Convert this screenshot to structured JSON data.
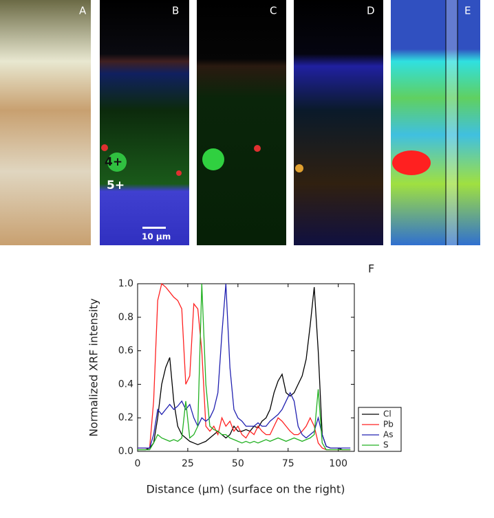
{
  "panels": {
    "labels": [
      "A",
      "B",
      "C",
      "D",
      "E"
    ],
    "annotations": [
      "4+",
      "5+"
    ],
    "scale_bar": "10 µm",
    "figure_label": "F"
  },
  "chart_data": {
    "type": "line",
    "xlabel": "Distance (µm) (surface on the right)",
    "ylabel": "Normalized XRF intensity",
    "x": [
      0,
      2,
      4,
      6,
      8,
      10,
      12,
      14,
      16,
      18,
      20,
      22,
      24,
      26,
      28,
      30,
      32,
      34,
      36,
      38,
      40,
      42,
      44,
      46,
      48,
      50,
      52,
      54,
      56,
      58,
      60,
      62,
      64,
      66,
      68,
      70,
      72,
      74,
      76,
      78,
      80,
      82,
      84,
      86,
      88,
      90,
      92,
      94,
      96,
      98,
      100,
      102,
      104,
      106
    ],
    "series": [
      {
        "name": "Cl",
        "color": "#000000",
        "values": [
          0.01,
          0.01,
          0.01,
          0.02,
          0.05,
          0.2,
          0.4,
          0.5,
          0.56,
          0.3,
          0.15,
          0.1,
          0.08,
          0.06,
          0.05,
          0.04,
          0.05,
          0.06,
          0.08,
          0.1,
          0.12,
          0.1,
          0.08,
          0.1,
          0.15,
          0.12,
          0.12,
          0.13,
          0.12,
          0.15,
          0.14,
          0.18,
          0.2,
          0.25,
          0.35,
          0.42,
          0.46,
          0.35,
          0.33,
          0.35,
          0.4,
          0.45,
          0.55,
          0.75,
          0.98,
          0.6,
          0.1,
          0.03,
          0.02,
          0.02,
          0.02,
          0.01,
          0.01,
          0.01
        ]
      },
      {
        "name": "Pb",
        "color": "#ff2020",
        "values": [
          0.02,
          0.02,
          0.02,
          0.02,
          0.3,
          0.9,
          1.0,
          0.98,
          0.95,
          0.92,
          0.9,
          0.85,
          0.4,
          0.45,
          0.88,
          0.85,
          0.6,
          0.15,
          0.12,
          0.15,
          0.1,
          0.2,
          0.15,
          0.18,
          0.12,
          0.15,
          0.1,
          0.08,
          0.12,
          0.1,
          0.15,
          0.12,
          0.1,
          0.1,
          0.15,
          0.2,
          0.18,
          0.15,
          0.12,
          0.1,
          0.1,
          0.12,
          0.15,
          0.2,
          0.15,
          0.05,
          0.02,
          0.01,
          0.01,
          0.01,
          0.01,
          0.01,
          0.01,
          0.01
        ]
      },
      {
        "name": "As",
        "color": "#2020b0",
        "values": [
          0.02,
          0.02,
          0.02,
          0.02,
          0.1,
          0.25,
          0.22,
          0.25,
          0.28,
          0.25,
          0.27,
          0.3,
          0.25,
          0.28,
          0.2,
          0.15,
          0.2,
          0.18,
          0.2,
          0.25,
          0.35,
          0.7,
          1.0,
          0.5,
          0.25,
          0.2,
          0.18,
          0.15,
          0.15,
          0.15,
          0.17,
          0.15,
          0.15,
          0.18,
          0.2,
          0.22,
          0.25,
          0.3,
          0.35,
          0.3,
          0.15,
          0.1,
          0.08,
          0.1,
          0.12,
          0.2,
          0.1,
          0.03,
          0.02,
          0.02,
          0.02,
          0.02,
          0.02,
          0.02
        ]
      },
      {
        "name": "S",
        "color": "#20b020",
        "values": [
          0.01,
          0.01,
          0.01,
          0.01,
          0.05,
          0.1,
          0.08,
          0.07,
          0.06,
          0.07,
          0.06,
          0.08,
          0.3,
          0.08,
          0.1,
          0.15,
          1.0,
          0.4,
          0.15,
          0.13,
          0.12,
          0.1,
          0.1,
          0.08,
          0.07,
          0.06,
          0.05,
          0.06,
          0.05,
          0.06,
          0.05,
          0.06,
          0.07,
          0.06,
          0.07,
          0.08,
          0.07,
          0.06,
          0.07,
          0.08,
          0.07,
          0.06,
          0.07,
          0.08,
          0.1,
          0.37,
          0.05,
          0.01,
          0.01,
          0.01,
          0.01,
          0.01,
          0.01,
          0.01
        ]
      }
    ],
    "xlim": [
      0,
      108
    ],
    "xticks": [
      0,
      25,
      50,
      75,
      100
    ],
    "ylim": [
      0,
      1.0
    ],
    "yticks": [
      {
        "value": 0,
        "label": "0.0"
      },
      0.2,
      0.4,
      0.6,
      0.8,
      {
        "value": 1.0,
        "label": "1.0"
      }
    ],
    "legend": "lower right",
    "grid": false
  }
}
